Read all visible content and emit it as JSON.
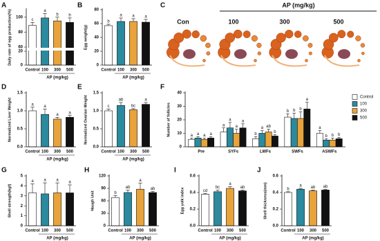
{
  "chart_data": [
    {
      "panel": "A",
      "type": "bar",
      "ylabel": "Daily rate of egg production(%)",
      "xlabel": "AP (mg/kg)",
      "categories": [
        "Control",
        "100",
        "300",
        "500"
      ],
      "values": [
        89,
        99,
        95,
        93
      ],
      "errors": [
        4,
        6,
        5,
        6
      ],
      "significance": [
        "c",
        "a",
        "b",
        "b"
      ],
      "colors": [
        "#ffffff",
        "#2b8a9e",
        "#e8a33a",
        "#111111"
      ],
      "ylim": [
        0,
        110
      ],
      "ybreak": [
        20,
        60
      ],
      "yticks": [
        0,
        20,
        60,
        80,
        100
      ]
    },
    {
      "panel": "B",
      "type": "bar",
      "ylabel": "Egg weight(g)",
      "xlabel": "AP (mg/kg)",
      "categories": [
        "Control",
        "100",
        "300",
        "500"
      ],
      "values": [
        57,
        63,
        63,
        62
      ],
      "errors": [
        2,
        5,
        4,
        4
      ],
      "significance": [
        "b",
        "a",
        "a",
        "a"
      ],
      "colors": [
        "#ffffff",
        "#2b8a9e",
        "#e8a33a",
        "#111111"
      ],
      "ylim": [
        0,
        80
      ],
      "yticks": [
        0,
        20,
        40,
        60,
        80
      ]
    },
    {
      "panel": "D",
      "type": "bar",
      "ylabel": "Normalized Liver Weight",
      "xlabel": "AP (mg/kg)",
      "categories": [
        "Control",
        "100",
        "300",
        "500"
      ],
      "values": [
        1.0,
        0.9,
        0.77,
        0.82
      ],
      "errors": [
        0.1,
        0.15,
        0.05,
        0.05
      ],
      "significance": [
        "a",
        "a",
        "a",
        "a"
      ],
      "colors": [
        "#ffffff",
        "#2b8a9e",
        "#e8a33a",
        "#111111"
      ],
      "ylim": [
        0,
        1.5
      ],
      "yticks": [
        {
          "value": 0,
          "label": "0.0"
        },
        {
          "value": 0.5,
          "label": "0.5"
        },
        {
          "value": 1,
          "label": "1.0"
        },
        {
          "value": 1.5,
          "label": "1.5"
        }
      ]
    },
    {
      "panel": "E",
      "type": "bar",
      "ylabel": "Normalized Ovarian Weight",
      "xlabel": "AP (mg/kg)",
      "categories": [
        "Control",
        "100",
        "300",
        "500"
      ],
      "values": [
        1.0,
        1.15,
        1.03,
        1.18
      ],
      "errors": [
        0.05,
        0.08,
        0.03,
        0.05
      ],
      "significance": [
        "c",
        "ab",
        "bc",
        "a"
      ],
      "colors": [
        "#ffffff",
        "#2b8a9e",
        "#e8a33a",
        "#111111"
      ],
      "ylim": [
        0,
        1.5
      ],
      "yticks": [
        {
          "value": 0,
          "label": "0.0"
        },
        {
          "value": 0.5,
          "label": "0.5"
        },
        {
          "value": 1,
          "label": "1.0"
        },
        {
          "value": 1.5,
          "label": "1.5"
        }
      ]
    },
    {
      "panel": "F",
      "type": "grouped-bar",
      "ylabel": "Number of follicles",
      "categories": [
        "Pre",
        "SYFs",
        "LWFs",
        "SWFs",
        "ASWFs"
      ],
      "series": [
        {
          "name": "Control",
          "color": "#ffffff",
          "values": [
            5.5,
            11,
            6,
            22,
            10
          ],
          "errors": [
            1,
            3,
            1.5,
            2.5,
            2
          ],
          "significance": [
            "a",
            "a",
            "b",
            "b",
            "a"
          ]
        },
        {
          "name": "100",
          "color": "#2b8a9e",
          "values": [
            6.5,
            14,
            10,
            21,
            5
          ],
          "errors": [
            1,
            4,
            2,
            4,
            1
          ],
          "significance": [
            "a",
            "a",
            "a",
            "b",
            "b"
          ]
        },
        {
          "name": "300",
          "color": "#e8a33a",
          "values": [
            5.5,
            10,
            11,
            21,
            5
          ],
          "errors": [
            1,
            3,
            2,
            5,
            1.5
          ],
          "significance": [
            "a",
            "a",
            "ab",
            "b",
            "b"
          ]
        },
        {
          "name": "500",
          "color": "#111111",
          "values": [
            6.5,
            14,
            8,
            28,
            6
          ],
          "errors": [
            1,
            3,
            1,
            5,
            1
          ],
          "significance": [
            "a",
            "a",
            "b",
            "a",
            "b"
          ]
        }
      ],
      "ylim": [
        0,
        40
      ],
      "yticks": [
        0,
        10,
        20,
        30,
        40
      ]
    },
    {
      "panel": "G",
      "type": "bar",
      "ylabel": "Shell strength(kgf)",
      "xlabel": "AP (mg/kg)",
      "categories": [
        "Control",
        "100",
        "300",
        "500"
      ],
      "values": [
        3.3,
        3.2,
        3.3,
        3.3
      ],
      "errors": [
        0.9,
        1.1,
        1,
        0.8
      ],
      "significance": [
        "a",
        "a",
        "a",
        "a"
      ],
      "colors": [
        "#ffffff",
        "#2b8a9e",
        "#e8a33a",
        "#111111"
      ],
      "ylim": [
        0,
        5
      ],
      "yticks": [
        0,
        1,
        2,
        3,
        4,
        5
      ]
    },
    {
      "panel": "H",
      "type": "bar",
      "ylabel": "Haugh Unit",
      "xlabel": "AP (mg/kg)",
      "categories": [
        "Control",
        "100",
        "300",
        "500"
      ],
      "values": [
        68,
        80,
        88,
        80
      ],
      "errors": [
        5,
        6,
        15,
        3
      ],
      "significance": [
        "b",
        "ab",
        "a",
        "ab"
      ],
      "colors": [
        "#ffffff",
        "#2b8a9e",
        "#e8a33a",
        "#111111"
      ],
      "ylim": [
        0,
        120
      ],
      "yticks": [
        0,
        30,
        60,
        90,
        120
      ]
    },
    {
      "panel": "I",
      "type": "bar",
      "ylabel": "Egg yolk index",
      "xlabel": "AP (mg/kg)",
      "categories": [
        "Control",
        "100",
        "300",
        "500"
      ],
      "values": [
        0.38,
        0.41,
        0.45,
        0.42
      ],
      "errors": [
        0.01,
        0.02,
        0.02,
        0.01
      ],
      "significance": [
        "cd",
        "bc",
        "a",
        "ab"
      ],
      "colors": [
        "#ffffff",
        "#2b8a9e",
        "#e8a33a",
        "#111111"
      ],
      "ylim": [
        0,
        0.6
      ],
      "yticks": [
        {
          "value": 0,
          "label": "0.0"
        },
        {
          "value": 0.2,
          "label": "0.2"
        },
        {
          "value": 0.4,
          "label": "0.4"
        },
        {
          "value": 0.6,
          "label": "0.6"
        }
      ]
    },
    {
      "panel": "J",
      "type": "bar",
      "ylabel": "Shell thickness(mm)",
      "xlabel": "AP (mg/kg)",
      "categories": [
        "Control",
        "100",
        "300",
        "500"
      ],
      "values": [
        0.4,
        0.44,
        0.42,
        0.43
      ],
      "errors": [
        0.01,
        0.01,
        0.01,
        0.01
      ],
      "significance": [
        "b",
        "a",
        "ab",
        "ab"
      ],
      "colors": [
        "#ffffff",
        "#2b8a9e",
        "#e8a33a",
        "#111111"
      ],
      "ylim": [
        0,
        0.6
      ],
      "yticks": [
        {
          "value": 0,
          "label": "0.0"
        },
        {
          "value": 0.2,
          "label": "0.2"
        },
        {
          "value": 0.4,
          "label": "0.4"
        },
        {
          "value": 0.6,
          "label": "0.6"
        }
      ]
    }
  ],
  "photo_panel": {
    "panel": "C",
    "title": "AP (mg/kg)",
    "groups": [
      "Con",
      "100",
      "300",
      "500"
    ]
  }
}
